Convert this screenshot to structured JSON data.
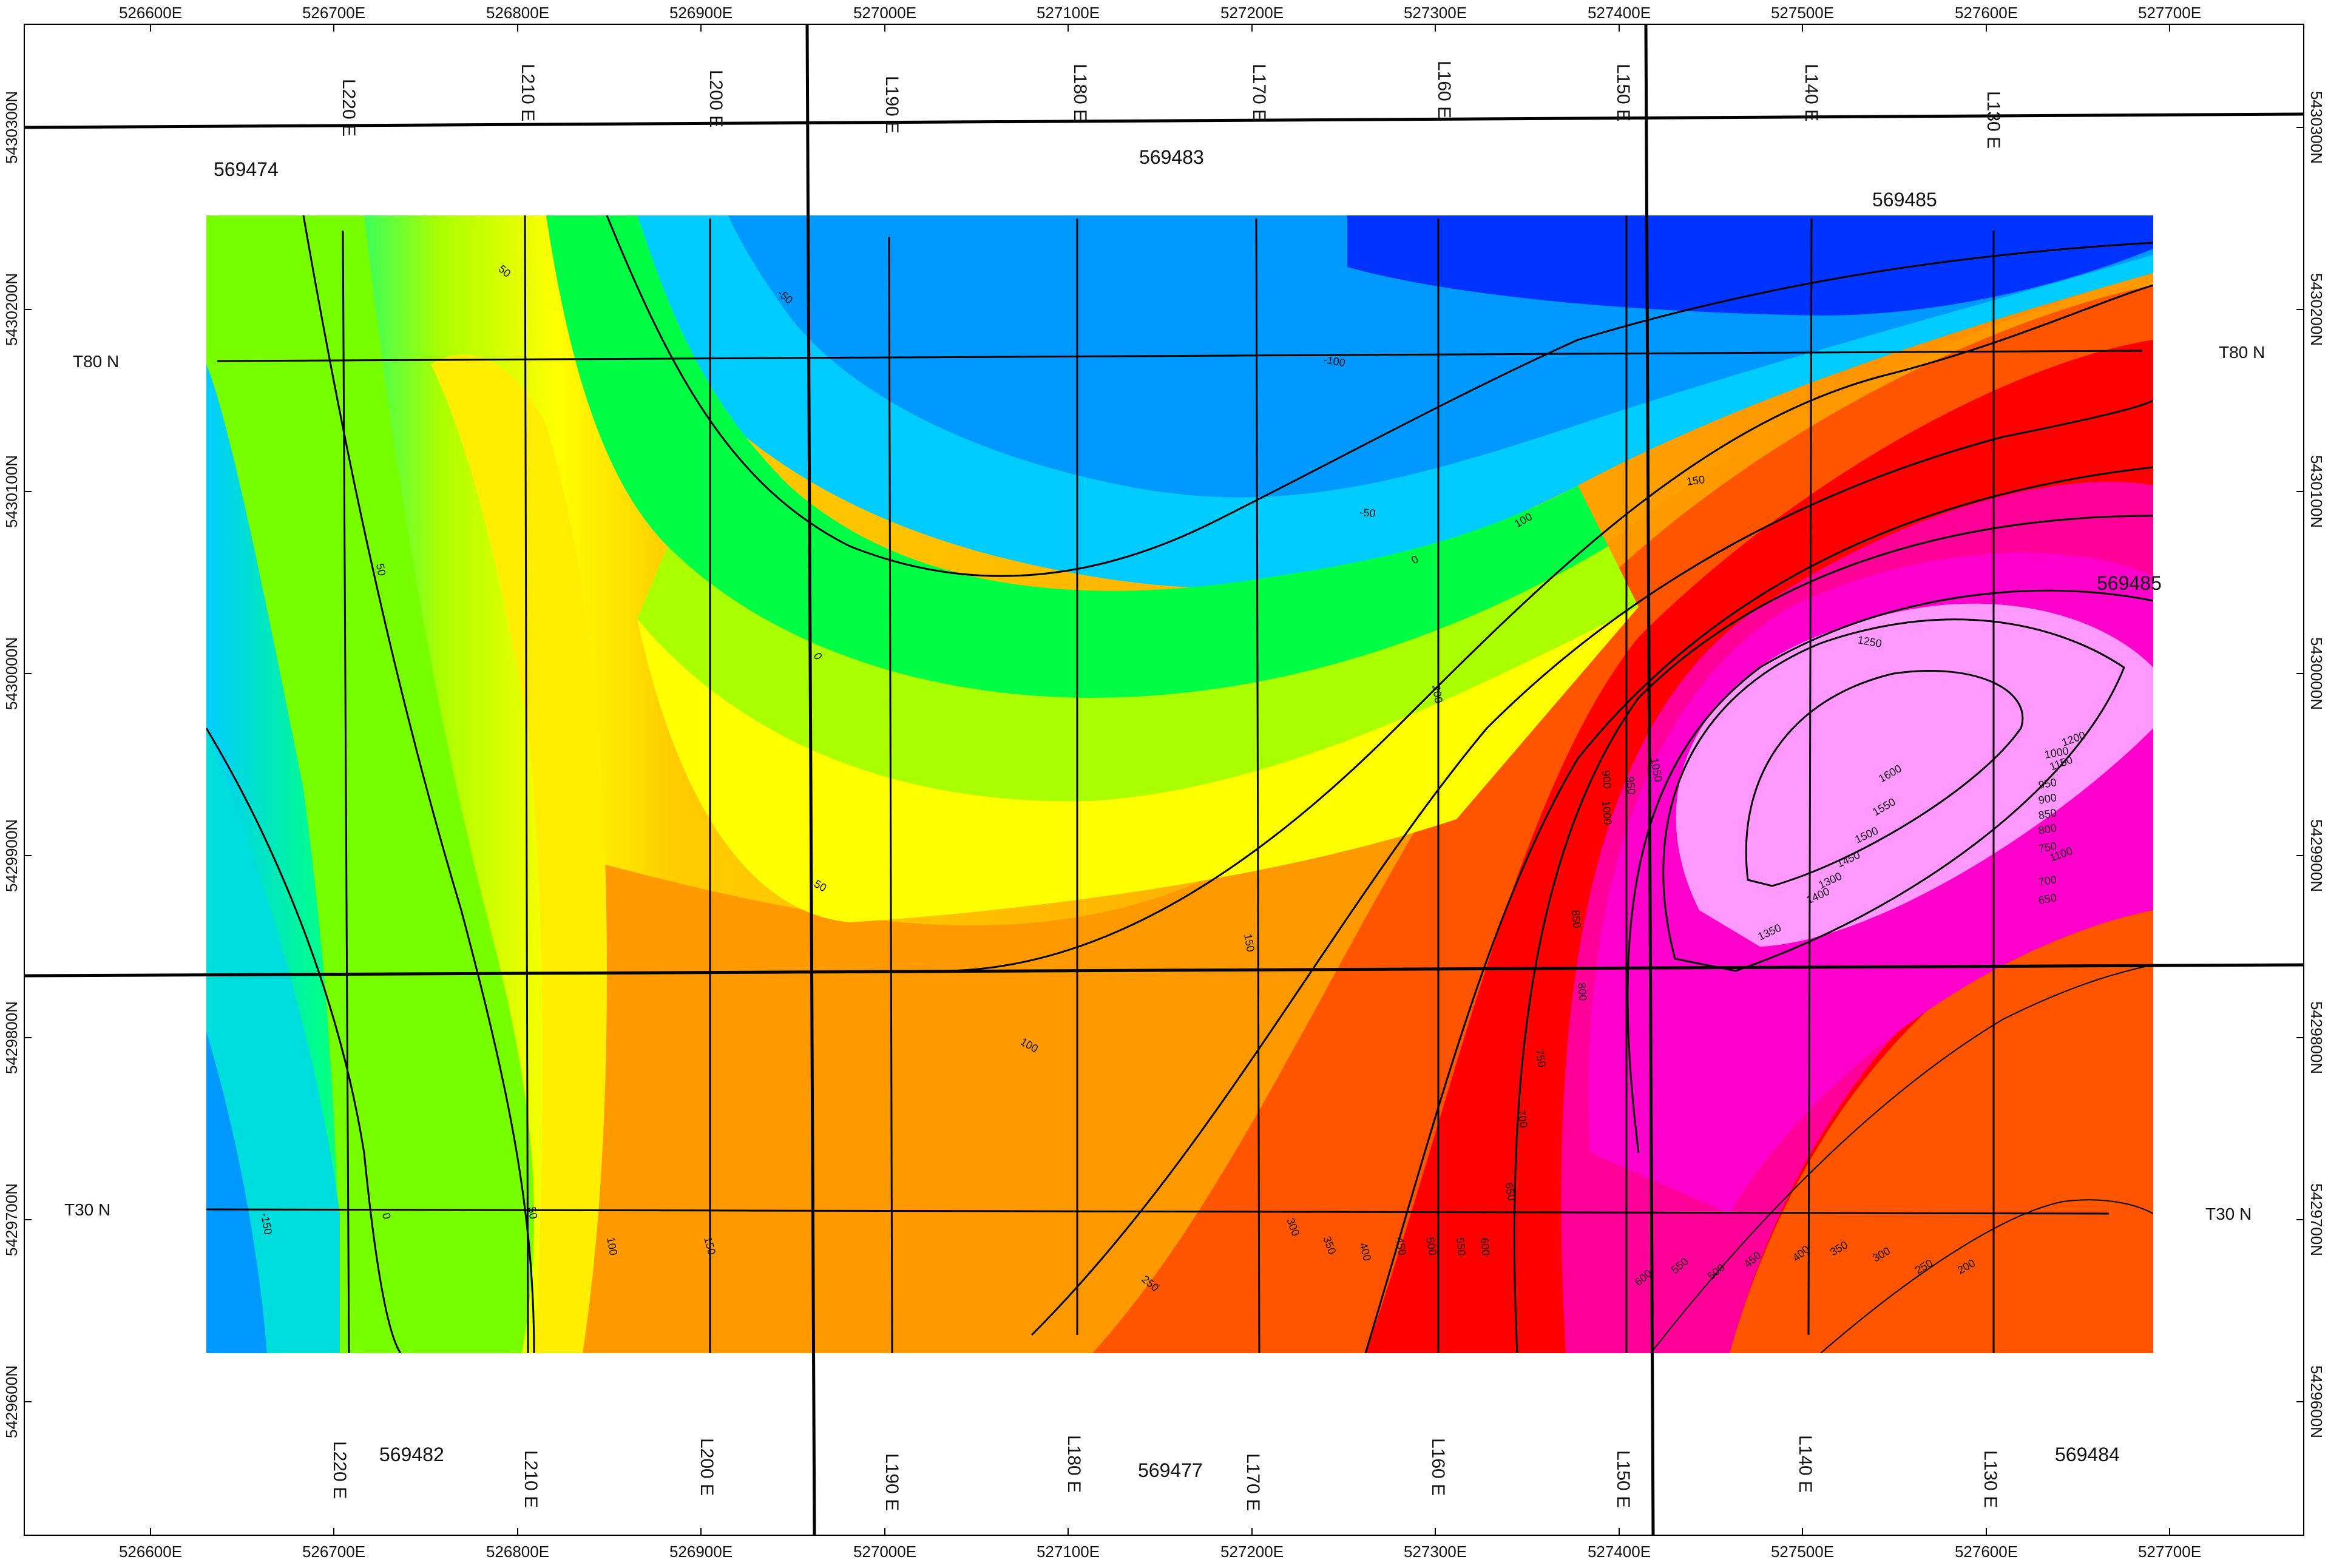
{
  "map": {
    "easting_ticks": [
      "526600E",
      "526700E",
      "526800E",
      "526900E",
      "527000E",
      "527100E",
      "527200E",
      "527300E",
      "527400E",
      "527500E",
      "527600E",
      "527700E"
    ],
    "northing_ticks": [
      "5430300N",
      "5430200N",
      "5430100N",
      "5430000N",
      "5429900N",
      "5429800N",
      "5429700N",
      "5429600N"
    ],
    "survey_lines": [
      "L220 E",
      "L210 E",
      "L200 E",
      "L190 E",
      "L180 E",
      "L170 E",
      "L160 E",
      "L150 E",
      "L140 E",
      "L130 E"
    ],
    "tie_lines": [
      "T80 N",
      "T30 N"
    ],
    "claims": [
      {
        "id": "c1",
        "number": "569474"
      },
      {
        "id": "c2",
        "number": "569483"
      },
      {
        "id": "c3",
        "number": "569485"
      },
      {
        "id": "c4",
        "number": "569485"
      },
      {
        "id": "c5",
        "number": "569482"
      },
      {
        "id": "c6",
        "number": "569477"
      },
      {
        "id": "c7",
        "number": "569484"
      }
    ],
    "contour_labels": [
      "50",
      "-50",
      "-100",
      "100",
      "150",
      "50",
      "0",
      "-50",
      "0",
      "50",
      "100",
      "150",
      "200",
      "250",
      "300",
      "350",
      "400",
      "450",
      "500",
      "550",
      "600",
      "650",
      "700",
      "750",
      "800",
      "850",
      "900",
      "950",
      "1000",
      "1050",
      "1100",
      "1150",
      "1200",
      "1250",
      "1300",
      "1350",
      "1400",
      "1450",
      "1500",
      "1550",
      "1600",
      "-150",
      "0",
      "50",
      "100",
      "150",
      "200",
      "250",
      "300",
      "350",
      "400",
      "450",
      "500",
      "550",
      "600",
      "650",
      "700",
      "750",
      "800",
      "850",
      "900",
      "950",
      "1000"
    ],
    "colors": {
      "blue": "#0033ff",
      "sky": "#0099ff",
      "cyan": "#00ffff",
      "green": "#00ff00",
      "yellow_green": "#aaff00",
      "yellow": "#ffff00",
      "orange": "#ffaa00",
      "red": "#ff0000",
      "magenta": "#ff00cc",
      "pink": "#ff99ff"
    }
  }
}
